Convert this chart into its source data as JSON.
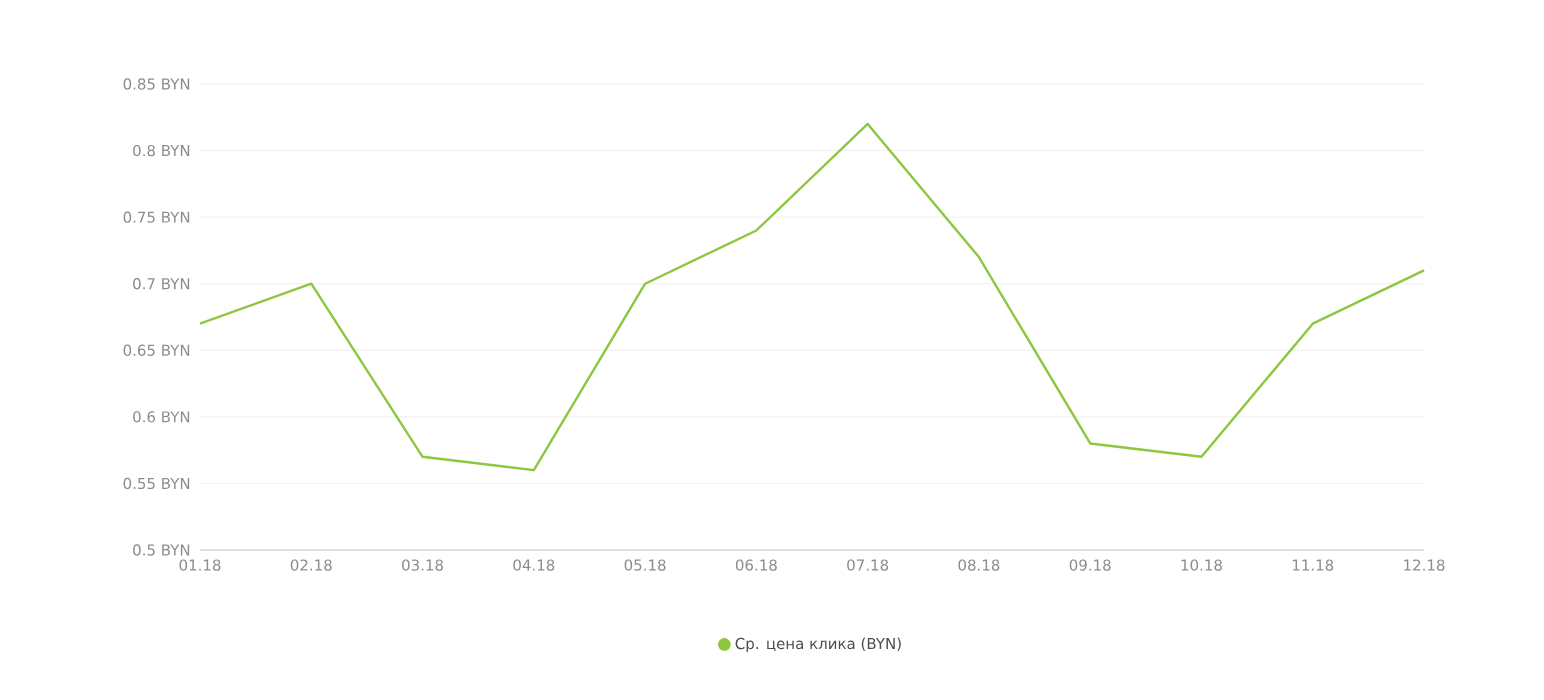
{
  "chart_data": {
    "type": "line",
    "categories": [
      "01.18",
      "02.18",
      "03.18",
      "04.18",
      "05.18",
      "06.18",
      "07.18",
      "08.18",
      "09.18",
      "10.18",
      "11.18",
      "12.18"
    ],
    "series": [
      {
        "name": "Ср. цена клика (BYN)",
        "color": "#8dc63f",
        "values": [
          0.67,
          0.7,
          0.57,
          0.56,
          0.7,
          0.74,
          0.82,
          0.72,
          0.58,
          0.57,
          0.67,
          0.71
        ]
      }
    ],
    "ylim": [
      0.5,
      0.85
    ],
    "yticks": [
      {
        "value": 0.5,
        "label": "0.5 BYN"
      },
      {
        "value": 0.55,
        "label": "0.55 BYN"
      },
      {
        "value": 0.6,
        "label": "0.6 BYN"
      },
      {
        "value": 0.65,
        "label": "0.65 BYN"
      },
      {
        "value": 0.7,
        "label": "0.7 BYN"
      },
      {
        "value": 0.75,
        "label": "0.75 BYN"
      },
      {
        "value": 0.8,
        "label": "0.8 BYN"
      },
      {
        "value": 0.85,
        "label": "0.85 BYN"
      }
    ],
    "grid": "y",
    "legend": "bottom"
  }
}
